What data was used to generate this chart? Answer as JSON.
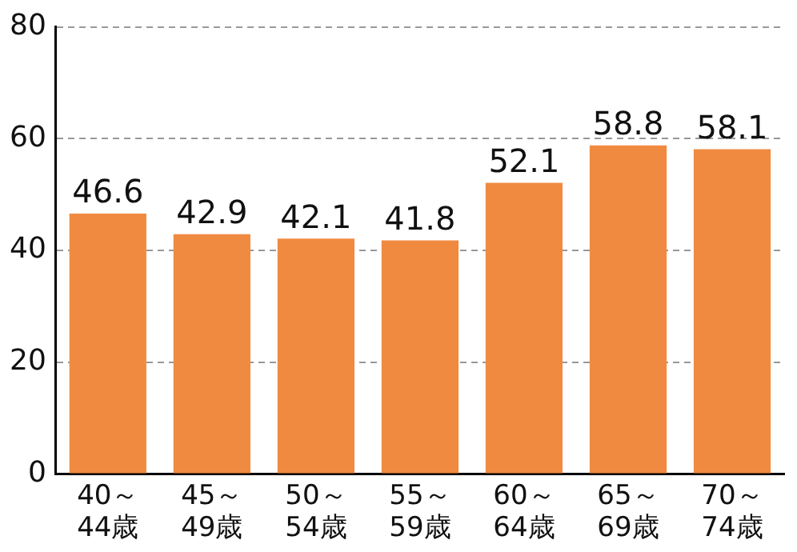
{
  "chart_data": {
    "type": "bar",
    "categories": [
      "40～\n44歳",
      "45～\n49歳",
      "50～\n54歳",
      "55～\n59歳",
      "60～\n64歳",
      "65～\n69歳",
      "70～\n74歳"
    ],
    "values": [
      46.6,
      42.9,
      42.1,
      41.8,
      52.1,
      58.8,
      58.1
    ],
    "color": "#f08a40",
    "ylim": [
      0,
      80
    ],
    "yticks": [
      0,
      20,
      40,
      60,
      80
    ],
    "grid": "y",
    "data_labels": true
  }
}
